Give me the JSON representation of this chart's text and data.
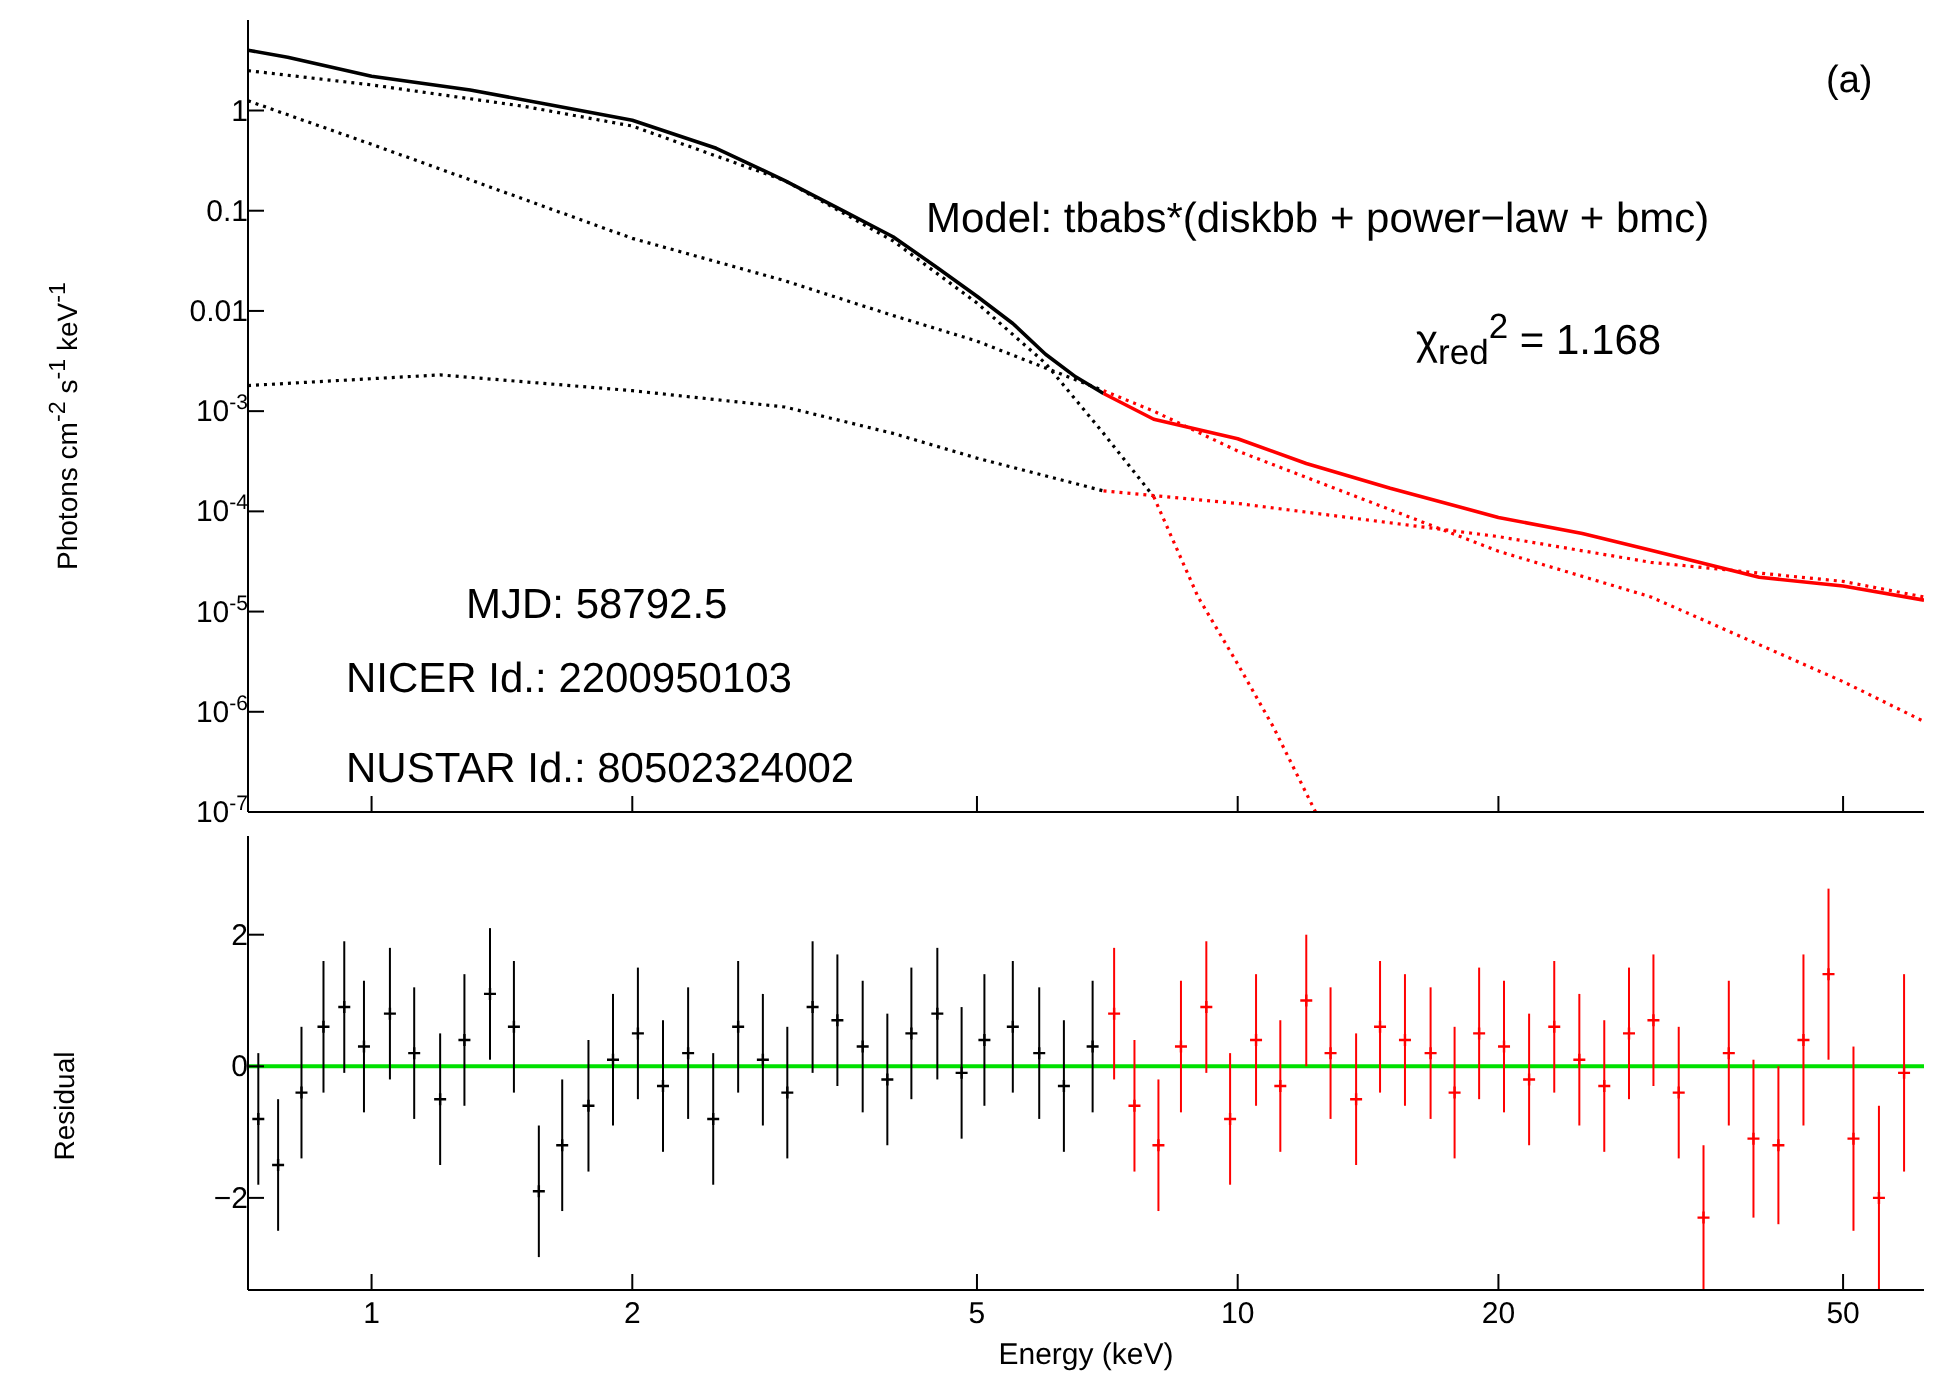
{
  "chart_data": [
    {
      "type": "line",
      "ylabel": "Photons cm$^{-2}$ s$^{-1}$ keV$^{-1}$",
      "log": "xy",
      "xlim": [
        0.72,
        62
      ],
      "xticks": [
        1,
        2,
        5,
        10,
        20,
        50
      ],
      "ylim": [
        1e-07,
        8
      ],
      "yticks": [
        1,
        0.1,
        0.01,
        {
          "value": 0.001,
          "label": "10$^{-3}$"
        },
        {
          "value": 0.0001,
          "label": "10$^{-4}$"
        },
        {
          "value": 1e-05,
          "label": "10$^{-5}$"
        },
        {
          "value": 1e-06,
          "label": "10$^{-6}$"
        },
        {
          "value": 1e-07,
          "label": "10$^{-7}$"
        }
      ],
      "tick_labels": "y",
      "annotations": [
        "(a)",
        "Model: tbabs*(diskbb + power−law + bmc)",
        "χ$_{red}$$^{2}$ = 1.168",
        "MJD: 58792.5",
        "NICER Id.: 2200950103",
        "NUSTAR Id.: 80502324002"
      ],
      "series": [
        {
          "color": "#000000",
          "x": [
            0.72,
            0.8,
            1,
            1.3,
            1.6,
            2,
            2.5,
            3,
            3.5,
            4,
            4.5,
            5,
            5.5,
            6,
            6.5,
            7
          ],
          "values": [
            4,
            3.4,
            2.2,
            1.6,
            1.15,
            0.8,
            0.42,
            0.2,
            0.1,
            0.055,
            0.027,
            0.014,
            0.0075,
            0.0037,
            0.0022,
            0.0015
          ]
        },
        {
          "color": "#ff0000",
          "x": [
            7,
            8,
            10,
            12,
            15,
            20,
            25,
            30,
            40,
            50,
            62
          ],
          "values": [
            0.0015,
            0.00083,
            0.00053,
            0.0003,
            0.00017,
            8.7e-05,
            6e-05,
            4.1e-05,
            2.2e-05,
            1.8e-05,
            1.3e-05
          ]
        },
        {
          "color": "#000000",
          "line_style": "dotted",
          "x": [
            0.72,
            1,
            1.5,
            2,
            3,
            4,
            5,
            6,
            7,
            8
          ],
          "values": [
            2.5,
            1.8,
            1.1,
            0.7,
            0.2,
            0.05,
            0.012,
            0.003,
            0.0006,
            0.00014
          ]
        },
        {
          "color": "#ff0000",
          "line_style": "dotted",
          "x": [
            8,
            9,
            10,
            11,
            12.3
          ],
          "values": [
            0.00014,
            1.4e-05,
            3e-06,
            7e-07,
            1e-07
          ]
        },
        {
          "color": "#000000",
          "line_style": "dotted",
          "x": [
            0.72,
            1,
            1.5,
            2,
            3,
            4,
            5,
            7
          ],
          "values": [
            1.25,
            0.46,
            0.13,
            0.053,
            0.02,
            0.009,
            0.005,
            0.0016
          ]
        },
        {
          "color": "#ff0000",
          "line_style": "dotted",
          "x": [
            7,
            8,
            10,
            20,
            30,
            50,
            62
          ],
          "values": [
            0.0016,
            0.001,
            0.0004,
            4e-05,
            1.4e-05,
            2e-06,
            8e-07
          ]
        },
        {
          "color": "#000000",
          "line_style": "dotted",
          "x": [
            0.72,
            1.2,
            2,
            3,
            4,
            5,
            7
          ],
          "values": [
            0.0018,
            0.0023,
            0.0016,
            0.0011,
            0.0006,
            0.00034,
            0.00016
          ]
        },
        {
          "color": "#ff0000",
          "line_style": "dotted",
          "x": [
            7,
            10,
            20,
            30,
            50,
            62
          ],
          "values": [
            0.00016,
            0.00012,
            5.6e-05,
            3.1e-05,
            2e-05,
            1.4e-05
          ]
        }
      ]
    },
    {
      "type": "scatter",
      "marker": "cross",
      "xlabel": "Energy (keV)",
      "ylabel": "Residual",
      "log": "x",
      "xlim": [
        0.72,
        62
      ],
      "xticks": [
        1,
        2,
        5,
        10,
        20,
        50
      ],
      "ylim": [
        -3.4,
        3.5
      ],
      "yticks": [
        {
          "value": -2,
          "label": "−2"
        },
        0,
        2
      ],
      "ref_lines": [
        {
          "axis": "y",
          "value": 0,
          "color": "#00e000"
        }
      ],
      "series": [
        {
          "color": "#000000",
          "x": [
            0.74,
            0.78,
            0.83,
            0.88,
            0.93,
            0.98,
            1.05,
            1.12,
            1.2,
            1.28,
            1.37,
            1.46,
            1.56,
            1.66,
            1.78,
            1.9,
            2.03,
            2.17,
            2.32,
            2.48,
            2.65,
            2.83,
            3.02,
            3.23,
            3.45,
            3.69,
            3.94,
            4.2,
            4.5,
            4.8,
            5.1,
            5.5,
            5.9,
            6.3,
            6.8
          ],
          "values": [
            -0.8,
            -1.5,
            -0.4,
            0.6,
            0.9,
            0.3,
            0.8,
            0.2,
            -0.5,
            0.4,
            1.1,
            0.6,
            -1.9,
            -1.2,
            -0.6,
            0.1,
            0.5,
            -0.3,
            0.2,
            -0.8,
            0.6,
            0.1,
            -0.4,
            0.9,
            0.7,
            0.3,
            -0.2,
            0.5,
            0.8,
            -0.1,
            0.4,
            0.6,
            0.2,
            -0.3,
            0.3
          ],
          "errors": [
            1,
            1,
            1,
            1,
            1,
            1,
            1,
            1,
            1,
            1,
            1,
            1,
            1,
            1,
            1,
            1,
            1,
            1,
            1,
            1,
            1,
            1,
            1,
            1,
            1,
            1,
            1,
            1,
            1,
            1,
            1,
            1,
            1,
            1,
            1
          ]
        },
        {
          "color": "#ff0000",
          "x": [
            7.2,
            7.6,
            8.1,
            8.6,
            9.2,
            9.8,
            10.5,
            11.2,
            12,
            12.8,
            13.7,
            14.6,
            15.6,
            16.7,
            17.8,
            19,
            20.3,
            21.7,
            23.2,
            24.8,
            26.5,
            28.3,
            30.2,
            32.3,
            34.5,
            36.9,
            39.4,
            42.1,
            45,
            48.1,
            51.4,
            55,
            58.8
          ],
          "values": [
            0.8,
            -0.6,
            -1.2,
            0.3,
            0.9,
            -0.8,
            0.4,
            -0.3,
            1,
            0.2,
            -0.5,
            0.6,
            0.4,
            0.2,
            -0.4,
            0.5,
            0.3,
            -0.2,
            0.6,
            0.1,
            -0.3,
            0.5,
            0.7,
            -0.4,
            -2.3,
            0.2,
            -1.1,
            -1.2,
            0.4,
            1.4,
            -1.1,
            -2,
            -0.1
          ],
          "errors": [
            1,
            1,
            1,
            1,
            1,
            1,
            1,
            1,
            1,
            1,
            1,
            1,
            1,
            1,
            1,
            1,
            1,
            1,
            1,
            1,
            1,
            1,
            1,
            1,
            1.1,
            1.1,
            1.2,
            1.2,
            1.3,
            1.3,
            1.4,
            1.4,
            1.5
          ]
        }
      ]
    }
  ]
}
